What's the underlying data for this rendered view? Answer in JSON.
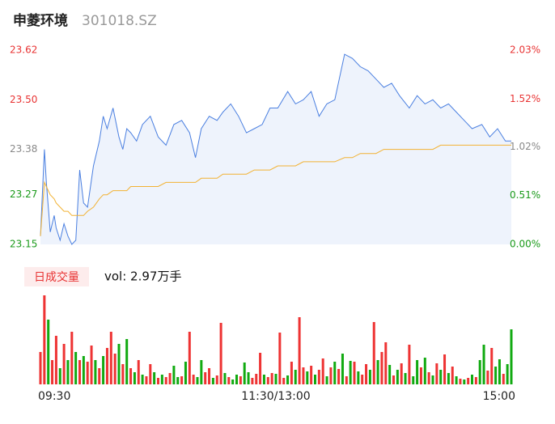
{
  "header": {
    "title": "申菱环境",
    "code": "301018.SZ"
  },
  "chart_data": [
    {
      "type": "line",
      "x": [
        0,
        2,
        3,
        5,
        7,
        8,
        10,
        12,
        14,
        16,
        18,
        20,
        22,
        24,
        27,
        30,
        32,
        34,
        37,
        40,
        42,
        44,
        46,
        49,
        52,
        56,
        60,
        64,
        68,
        72,
        76,
        79,
        82,
        86,
        90,
        93,
        97,
        101,
        105,
        109,
        113,
        117,
        121,
        126,
        130,
        134,
        138,
        142,
        146,
        150,
        155,
        159,
        163,
        167,
        171,
        175,
        179,
        183,
        188,
        192,
        196,
        200,
        204,
        208,
        212,
        216,
        220,
        225,
        229,
        233,
        237,
        240
      ],
      "xlim": [
        0,
        240
      ],
      "ylim": [
        23.15,
        23.62
      ],
      "yticks": [
        {
          "value": 23.62,
          "label": "23.62"
        },
        {
          "value": 23.5,
          "label": "23.50"
        },
        {
          "value": 23.38,
          "label": "23.38"
        },
        {
          "value": 23.27,
          "label": "23.27"
        },
        {
          "value": 23.15,
          "label": "23.15"
        }
      ],
      "y2lim": [
        0,
        2.03
      ],
      "y2ticks": [
        {
          "value": 2.03,
          "label": "2.03%"
        },
        {
          "value": 1.52,
          "label": "1.52%"
        },
        {
          "value": 1.02,
          "label": "1.02%"
        },
        {
          "value": 0.51,
          "label": "0.51%"
        },
        {
          "value": 0,
          "label": "0.00%"
        }
      ],
      "tick_colors": [
        "#e83333",
        "#e83333",
        "#888888",
        "#1a9a1a",
        "#1a9a1a"
      ],
      "area_color": "#eef3fc",
      "series": [
        {
          "color": "#4a7fe0",
          "values": [
            23.17,
            23.38,
            23.3,
            23.18,
            23.22,
            23.19,
            23.16,
            23.2,
            23.17,
            23.15,
            23.16,
            23.33,
            23.25,
            23.24,
            23.34,
            23.4,
            23.46,
            23.43,
            23.48,
            23.41,
            23.38,
            23.43,
            23.42,
            23.4,
            23.44,
            23.46,
            23.41,
            23.39,
            23.44,
            23.45,
            23.42,
            23.36,
            23.43,
            23.46,
            23.45,
            23.47,
            23.49,
            23.46,
            23.42,
            23.43,
            23.44,
            23.48,
            23.48,
            23.52,
            23.49,
            23.5,
            23.52,
            23.46,
            23.49,
            23.5,
            23.61,
            23.6,
            23.58,
            23.57,
            23.55,
            23.53,
            23.54,
            23.51,
            23.48,
            23.51,
            23.49,
            23.5,
            23.48,
            23.49,
            23.47,
            23.45,
            23.43,
            23.44,
            23.41,
            23.43,
            23.4,
            23.4
          ]
        },
        {
          "color": "#f2b233",
          "values": [
            23.17,
            23.3,
            23.29,
            23.27,
            23.26,
            23.25,
            23.24,
            23.23,
            23.23,
            23.22,
            23.22,
            23.22,
            23.22,
            23.23,
            23.24,
            23.26,
            23.27,
            23.27,
            23.28,
            23.28,
            23.28,
            23.28,
            23.29,
            23.29,
            23.29,
            23.29,
            23.29,
            23.3,
            23.3,
            23.3,
            23.3,
            23.3,
            23.31,
            23.31,
            23.31,
            23.32,
            23.32,
            23.32,
            23.32,
            23.33,
            23.33,
            23.33,
            23.34,
            23.34,
            23.34,
            23.35,
            23.35,
            23.35,
            23.35,
            23.35,
            23.36,
            23.36,
            23.37,
            23.37,
            23.37,
            23.38,
            23.38,
            23.38,
            23.38,
            23.38,
            23.38,
            23.38,
            23.39,
            23.39,
            23.39,
            23.39,
            23.39,
            23.39,
            23.39,
            23.39,
            23.39,
            23.39
          ]
        }
      ]
    },
    {
      "type": "bar",
      "tab": "日成交量",
      "label": "vol: 2.97万手",
      "x": [
        0,
        2,
        4,
        6,
        8,
        10,
        12,
        14,
        16,
        18,
        20,
        22,
        24,
        26,
        28,
        30,
        32,
        34,
        36,
        38,
        40,
        42,
        44,
        46,
        48,
        50,
        52,
        54,
        56,
        58,
        60,
        62,
        64,
        66,
        68,
        70,
        72,
        74,
        76,
        78,
        80,
        82,
        84,
        86,
        88,
        90,
        92,
        94,
        96,
        98,
        100,
        102,
        104,
        106,
        108,
        110,
        112,
        114,
        116,
        118,
        120,
        122,
        124,
        126,
        128,
        130,
        132,
        134,
        136,
        138,
        140,
        142,
        144,
        146,
        148,
        150,
        152,
        154,
        156,
        158,
        160,
        162,
        164,
        166,
        168,
        170,
        172,
        174,
        176,
        178,
        180,
        182,
        184,
        186,
        188,
        190,
        192,
        194,
        196,
        198,
        200,
        202,
        204,
        206,
        208,
        210,
        212,
        214,
        216,
        218,
        220,
        222,
        224,
        226,
        228,
        230,
        232,
        234,
        236,
        238,
        240
      ],
      "xlim": [
        0,
        240
      ],
      "xticks": [
        {
          "value": 0,
          "label": "09:30"
        },
        {
          "value": 120,
          "label": "11:30/13:00"
        },
        {
          "value": 240,
          "label": "15:00"
        }
      ],
      "values": [
        400,
        1100,
        800,
        300,
        600,
        200,
        500,
        300,
        650,
        400,
        300,
        350,
        280,
        480,
        300,
        200,
        350,
        450,
        650,
        380,
        500,
        250,
        560,
        200,
        150,
        300,
        120,
        100,
        250,
        150,
        80,
        120,
        90,
        140,
        230,
        90,
        100,
        280,
        650,
        120,
        90,
        300,
        150,
        200,
        80,
        110,
        760,
        140,
        90,
        60,
        120,
        100,
        270,
        150,
        80,
        130,
        390,
        120,
        90,
        140,
        130,
        640,
        80,
        110,
        280,
        180,
        830,
        210,
        160,
        230,
        120,
        180,
        320,
        100,
        210,
        280,
        190,
        380,
        100,
        290,
        280,
        160,
        120,
        250,
        180,
        770,
        300,
        400,
        520,
        240,
        110,
        180,
        260,
        140,
        490,
        100,
        300,
        210,
        330,
        150,
        110,
        260,
        180,
        370,
        140,
        220,
        100,
        70,
        60,
        80,
        120,
        90,
        300,
        490,
        170,
        450,
        220,
        310,
        130,
        250,
        680
      ],
      "colors": [
        "#e33",
        "#e33",
        "#1a1",
        "#e33",
        "#e33",
        "#1a1",
        "#e33",
        "#1a1",
        "#e33",
        "#1a1",
        "#e33",
        "#1a1",
        "#e33",
        "#e33",
        "#1a1",
        "#e33",
        "#1a1",
        "#e33",
        "#e33",
        "#e33",
        "#1a1",
        "#e33",
        "#1a1",
        "#e33",
        "#1a1",
        "#e33",
        "#1a1",
        "#e33",
        "#e33",
        "#1a1",
        "#e33",
        "#1a1",
        "#e33",
        "#e33",
        "#1a1",
        "#1a1",
        "#e33",
        "#1a1",
        "#e33",
        "#e33",
        "#1a1",
        "#1a1",
        "#e33",
        "#e33",
        "#1a1",
        "#e33",
        "#e33",
        "#1a1",
        "#e33",
        "#1a1",
        "#1a1",
        "#e33",
        "#1a1",
        "#1a1",
        "#e33",
        "#e33",
        "#e33",
        "#1a1",
        "#e33",
        "#e33",
        "#1a1",
        "#e33",
        "#e33",
        "#1a1",
        "#e33",
        "#1a1",
        "#e33",
        "#e33",
        "#1a1",
        "#e33",
        "#1a1",
        "#e33",
        "#e33",
        "#1a1",
        "#e33",
        "#1a1",
        "#e33",
        "#1a1",
        "#e33",
        "#1a1",
        "#e33",
        "#1a1",
        "#e33",
        "#e33",
        "#1a1",
        "#e33",
        "#1a1",
        "#e33",
        "#e33",
        "#1a1",
        "#e33",
        "#1a1",
        "#e33",
        "#1a1",
        "#e33",
        "#1a1",
        "#1a1",
        "#e33",
        "#1a1",
        "#e33",
        "#1a1",
        "#e33",
        "#1a1",
        "#e33",
        "#1a1",
        "#e33",
        "#1a1",
        "#e33",
        "#1a1",
        "#e33",
        "#1a1",
        "#e33",
        "#1a1",
        "#1a1",
        "#e33",
        "#e33",
        "#1a1",
        "#1a1",
        "#e33",
        "#1a1",
        "#1a1"
      ]
    }
  ]
}
